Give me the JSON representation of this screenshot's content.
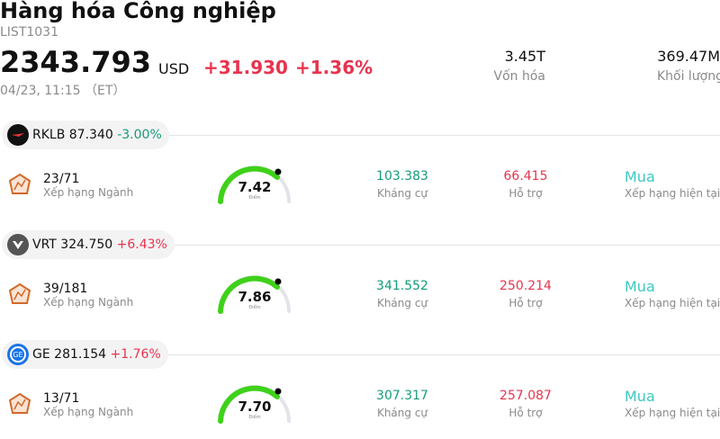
{
  "header": {
    "title": "Hàng hóa Công nghiệp",
    "code": "LIST1031",
    "price": "2343.793",
    "currency": "USD",
    "change": "+31.930",
    "change_pct": "+1.36%",
    "time": "04/23, 11:15 （ET）",
    "stats": [
      {
        "value": "3.45T",
        "label": "Vốn hóa"
      },
      {
        "value": "369.47M",
        "label": "Khối lượng"
      }
    ]
  },
  "stocks": [
    {
      "ticker": "RKLB",
      "price": "87.340",
      "change_pct": "-3.00%",
      "rank": "23/71",
      "rank_label": "Xếp hạng Ngành",
      "score": "7.42",
      "score_label": "Điểm",
      "resistance": "103.383",
      "resistance_label": "Kháng cự",
      "support": "66.415",
      "support_label": "Hỗ trợ",
      "rating": "Mua",
      "rating_label": "Xếp hạng hiện tại"
    },
    {
      "ticker": "VRT",
      "price": "324.750",
      "change_pct": "+6.43%",
      "rank": "39/181",
      "rank_label": "Xếp hạng Ngành",
      "score": "7.86",
      "score_label": "Điểm",
      "resistance": "341.552",
      "resistance_label": "Kháng cự",
      "support": "250.214",
      "support_label": "Hỗ trợ",
      "rating": "Mua",
      "rating_label": "Xếp hạng hiện tại"
    },
    {
      "ticker": "GE",
      "price": "281.154",
      "change_pct": "+1.76%",
      "rank": "13/71",
      "rank_label": "Xếp hạng Ngành",
      "score": "7.70",
      "score_label": "Điểm",
      "resistance": "307.317",
      "resistance_label": "Kháng cự",
      "support": "257.087",
      "support_label": "Hỗ trợ",
      "rating": "Mua",
      "rating_label": "Xếp hạng hiện tại"
    }
  ]
}
